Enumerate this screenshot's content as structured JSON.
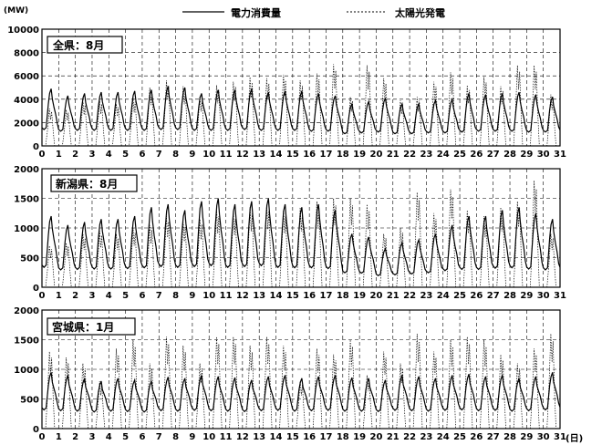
{
  "unit_label": "(MW)",
  "day_unit": "(日)",
  "legend": [
    {
      "label": "電力消費量",
      "style": "solid"
    },
    {
      "label": "太陽光発電",
      "style": "dotted"
    }
  ],
  "colors": {
    "line": "#000000",
    "grid": "#000000",
    "background": "#ffffff"
  },
  "chart_data": [
    {
      "type": "line",
      "title": "全県：8月",
      "xlabel": "(日)",
      "ylabel": "(MW)",
      "x_ticks": [
        "0",
        "1",
        "2",
        "3",
        "4",
        "5",
        "6",
        "7",
        "8",
        "9",
        "10",
        "11",
        "12",
        "13",
        "14",
        "15",
        "16",
        "17",
        "18",
        "19",
        "20",
        "21",
        "22",
        "23",
        "24",
        "25",
        "26",
        "27",
        "28",
        "29",
        "30",
        "31"
      ],
      "xlim": [
        0,
        31
      ],
      "ylim": [
        0,
        10000
      ],
      "y_ticks": [
        "10000",
        "8000",
        "6000",
        "4000",
        "2000",
        "0"
      ],
      "y_tick_values": [
        10000,
        8000,
        6000,
        4000,
        2000,
        0
      ],
      "grid": true,
      "series": [
        {
          "name": "電力消費量",
          "style": "solid",
          "daily_peak": [
            4900,
            4300,
            4500,
            4600,
            4600,
            4700,
            4800,
            5100,
            5000,
            4500,
            4800,
            4800,
            4900,
            4600,
            4700,
            4700,
            4500,
            4300,
            3600,
            3800,
            4100,
            3600,
            3600,
            3900,
            4000,
            4500,
            4400,
            4500,
            4600,
            4400,
            4200
          ],
          "daily_min": [
            2000,
            1800,
            1900,
            1900,
            1900,
            1900,
            1900,
            2000,
            2000,
            1900,
            1900,
            1900,
            2000,
            1900,
            1900,
            1900,
            1800,
            1800,
            1500,
            1600,
            1700,
            1500,
            1500,
            1600,
            1600,
            1700,
            1800,
            1800,
            1800,
            1700,
            1700
          ]
        },
        {
          "name": "太陽光発電",
          "style": "dotted",
          "daily_peak": [
            3200,
            3100,
            3800,
            3900,
            3600,
            4100,
            5000,
            5600,
            5100,
            4200,
            5200,
            5500,
            5900,
            5800,
            6100,
            5600,
            6200,
            7000,
            4200,
            6900,
            5800,
            3900,
            4200,
            5500,
            6300,
            5200,
            5900,
            5100,
            6900,
            6900,
            4400
          ]
        }
      ]
    },
    {
      "type": "line",
      "title": "新潟県：8月",
      "xlabel": "(日)",
      "ylabel": "(MW)",
      "x_ticks": [
        "0",
        "1",
        "2",
        "3",
        "4",
        "5",
        "6",
        "7",
        "8",
        "9",
        "10",
        "11",
        "12",
        "13",
        "14",
        "15",
        "16",
        "17",
        "18",
        "19",
        "20",
        "21",
        "22",
        "23",
        "24",
        "25",
        "26",
        "27",
        "28",
        "29",
        "30",
        "31"
      ],
      "xlim": [
        0,
        31
      ],
      "ylim": [
        0,
        2000
      ],
      "y_ticks": [
        "2000",
        "1500",
        "1000",
        "500",
        "0"
      ],
      "y_tick_values": [
        2000,
        1500,
        1000,
        500,
        0
      ],
      "grid": true,
      "series": [
        {
          "name": "電力消費量",
          "style": "solid",
          "daily_peak": [
            1200,
            1050,
            1100,
            1150,
            1150,
            1200,
            1350,
            1400,
            1300,
            1450,
            1500,
            1400,
            1450,
            1500,
            1400,
            1350,
            1400,
            1300,
            900,
            850,
            650,
            750,
            800,
            900,
            1050,
            1200,
            1200,
            1300,
            1350,
            1250,
            1150
          ],
          "daily_min": [
            480,
            420,
            430,
            440,
            440,
            450,
            470,
            500,
            480,
            500,
            520,
            480,
            500,
            520,
            480,
            470,
            470,
            450,
            350,
            340,
            280,
            300,
            320,
            350,
            400,
            430,
            430,
            460,
            470,
            440,
            420
          ]
        },
        {
          "name": "太陽光発電",
          "style": "dotted",
          "daily_peak": [
            700,
            750,
            900,
            950,
            900,
            1000,
            1050,
            1200,
            1100,
            1150,
            1300,
            1250,
            1350,
            1400,
            1300,
            1350,
            1450,
            1500,
            1500,
            1400,
            900,
            1000,
            1600,
            1250,
            1650,
            1300,
            1200,
            1350,
            1450,
            1800,
            900
          ]
        }
      ]
    },
    {
      "type": "line",
      "title": "宮城県：1月",
      "xlabel": "(日)",
      "ylabel": "(MW)",
      "x_ticks": [
        "0",
        "1",
        "2",
        "3",
        "4",
        "5",
        "6",
        "7",
        "8",
        "9",
        "10",
        "11",
        "12",
        "13",
        "14",
        "15",
        "16",
        "17",
        "18",
        "19",
        "20",
        "21",
        "22",
        "23",
        "24",
        "25",
        "26",
        "27",
        "28",
        "29",
        "30",
        "31"
      ],
      "xlim": [
        0,
        31
      ],
      "ylim": [
        0,
        2000
      ],
      "y_ticks": [
        "2000",
        "1500",
        "1000",
        "500",
        "0"
      ],
      "y_tick_values": [
        2000,
        1500,
        1000,
        500,
        0
      ],
      "grid": true,
      "series": [
        {
          "name": "電力消費量",
          "style": "solid",
          "daily_peak": [
            950,
            900,
            850,
            800,
            850,
            820,
            800,
            870,
            850,
            900,
            880,
            860,
            820,
            880,
            900,
            850,
            880,
            900,
            860,
            850,
            820,
            900,
            880,
            850,
            900,
            920,
            880,
            900,
            850,
            880,
            950
          ],
          "daily_min": [
            450,
            430,
            420,
            400,
            420,
            410,
            400,
            430,
            420,
            440,
            430,
            420,
            410,
            430,
            440,
            420,
            430,
            440,
            420,
            420,
            410,
            440,
            430,
            420,
            440,
            450,
            430,
            440,
            420,
            430,
            450
          ]
        },
        {
          "name": "太陽光発電",
          "style": "dotted",
          "daily_peak": [
            1300,
            1200,
            1100,
            800,
            1350,
            1500,
            1100,
            1550,
            1400,
            1100,
            1550,
            1550,
            1400,
            1550,
            1400,
            800,
            1350,
            1250,
            1500,
            900,
            1300,
            1100,
            1600,
            1300,
            1500,
            1550,
            1500,
            1250,
            1100,
            1350,
            1600
          ]
        }
      ]
    }
  ]
}
